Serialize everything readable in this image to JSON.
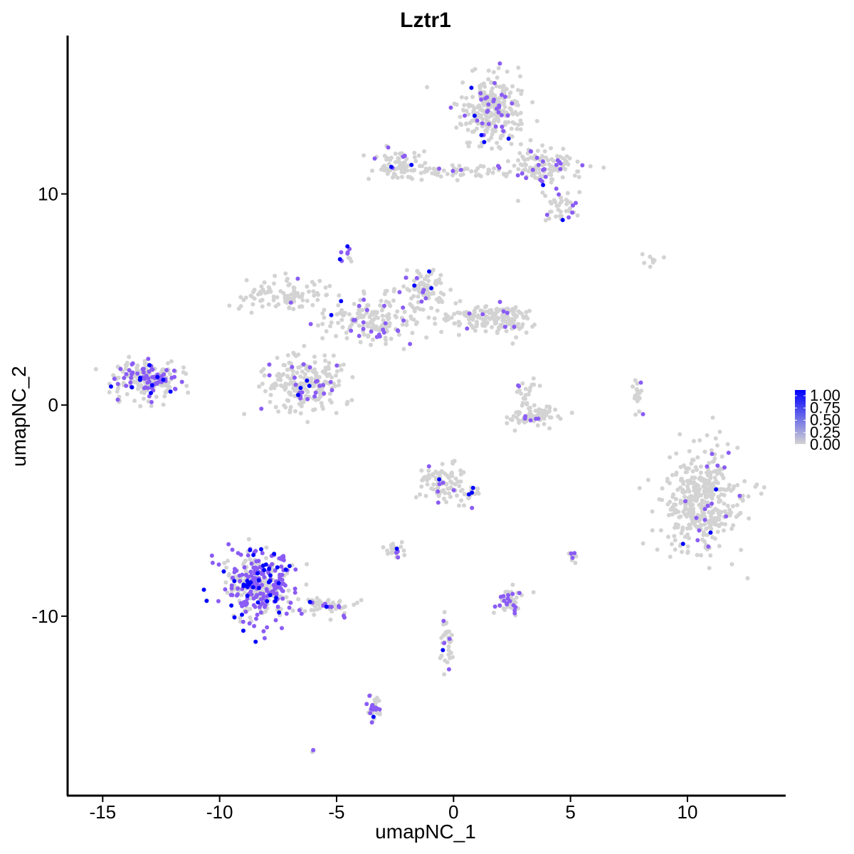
{
  "chart_data": {
    "type": "scatter",
    "title": "Lztr1",
    "xlabel": "umapNC_1",
    "ylabel": "umapNC_2",
    "xlim": [
      -16.5,
      14.2
    ],
    "ylim": [
      -18.5,
      17.5
    ],
    "x_ticks": [
      -15,
      -10,
      -5,
      0,
      5,
      10
    ],
    "x_tick_labels": [
      "-15",
      "-10",
      "-5",
      "0",
      "5",
      "10"
    ],
    "y_ticks": [
      -10,
      0,
      10
    ],
    "y_tick_labels": [
      "-10",
      "0",
      "10"
    ],
    "grid": false,
    "legend": {
      "position": "right",
      "labels": [
        "1.00",
        "0.75",
        "0.50",
        "0.25",
        "0.00"
      ],
      "range": [
        0,
        1
      ],
      "low_color": "#d3d3d3",
      "high_color": "#0000ff"
    },
    "colors": {
      "low": "#d3d3d3",
      "mid": "#8a5cf5",
      "high": "#0000ff"
    },
    "clusters": [
      {
        "x": 1.7,
        "y": 14.0,
        "sx": 0.9,
        "sy": 1.0,
        "n": 280,
        "frac_expr": 0.1
      },
      {
        "x": 3.8,
        "y": 11.3,
        "sx": 1.0,
        "sy": 0.6,
        "n": 130,
        "frac_expr": 0.15
      },
      {
        "x": 4.6,
        "y": 9.3,
        "sx": 0.5,
        "sy": 0.5,
        "n": 40,
        "frac_expr": 0.2
      },
      {
        "x": 0.2,
        "y": 11.1,
        "sx": 1.6,
        "sy": 0.2,
        "n": 60,
        "frac_expr": 0.08
      },
      {
        "x": -2.4,
        "y": 11.4,
        "sx": 0.8,
        "sy": 0.5,
        "n": 70,
        "frac_expr": 0.05
      },
      {
        "x": -13.1,
        "y": 1.2,
        "sx": 1.0,
        "sy": 0.6,
        "n": 230,
        "frac_expr": 0.3
      },
      {
        "x": -6.3,
        "y": 1.0,
        "sx": 1.1,
        "sy": 0.9,
        "n": 230,
        "frac_expr": 0.14
      },
      {
        "x": -3.5,
        "y": 4.0,
        "sx": 1.3,
        "sy": 0.7,
        "n": 170,
        "frac_expr": 0.15
      },
      {
        "x": -7.2,
        "y": 5.2,
        "sx": 1.2,
        "sy": 0.5,
        "n": 100,
        "frac_expr": 0.08
      },
      {
        "x": -1.2,
        "y": 5.5,
        "sx": 0.6,
        "sy": 0.6,
        "n": 90,
        "frac_expr": 0.1
      },
      {
        "x": 1.3,
        "y": 4.1,
        "sx": 1.2,
        "sy": 0.4,
        "n": 130,
        "frac_expr": 0.08
      },
      {
        "x": 2.5,
        "y": 4.0,
        "sx": 0.5,
        "sy": 0.5,
        "n": 50,
        "frac_expr": 0.08
      },
      {
        "x": -4.6,
        "y": 7.2,
        "sx": 0.2,
        "sy": 0.3,
        "n": 10,
        "frac_expr": 0.6
      },
      {
        "x": 3.4,
        "y": -0.5,
        "sx": 0.8,
        "sy": 0.3,
        "n": 80,
        "frac_expr": 0.05
      },
      {
        "x": 3.2,
        "y": 0.5,
        "sx": 0.3,
        "sy": 0.5,
        "n": 20,
        "frac_expr": 0.1
      },
      {
        "x": 7.9,
        "y": 0.3,
        "sx": 0.15,
        "sy": 0.6,
        "n": 20,
        "frac_expr": 0.05
      },
      {
        "x": 10.6,
        "y": -4.5,
        "sx": 1.1,
        "sy": 1.6,
        "n": 420,
        "frac_expr": 0.05
      },
      {
        "x": -0.4,
        "y": -3.7,
        "sx": 0.6,
        "sy": 0.6,
        "n": 90,
        "frac_expr": 0.12
      },
      {
        "x": 0.8,
        "y": -4.5,
        "sx": 0.3,
        "sy": 0.5,
        "n": 15,
        "frac_expr": 0.2
      },
      {
        "x": -8.3,
        "y": -8.5,
        "sx": 0.9,
        "sy": 1.1,
        "n": 360,
        "frac_expr": 0.55
      },
      {
        "x": -5.6,
        "y": -9.6,
        "sx": 0.9,
        "sy": 0.3,
        "n": 60,
        "frac_expr": 0.25
      },
      {
        "x": -2.5,
        "y": -6.9,
        "sx": 0.3,
        "sy": 0.25,
        "n": 25,
        "frac_expr": 0.25
      },
      {
        "x": 2.4,
        "y": -9.3,
        "sx": 0.4,
        "sy": 0.4,
        "n": 50,
        "frac_expr": 0.35
      },
      {
        "x": -0.3,
        "y": -11.3,
        "sx": 0.2,
        "sy": 0.9,
        "n": 35,
        "frac_expr": 0.08
      },
      {
        "x": -3.4,
        "y": -14.5,
        "sx": 0.2,
        "sy": 0.5,
        "n": 30,
        "frac_expr": 0.5
      },
      {
        "x": 5.1,
        "y": -7.2,
        "sx": 0.1,
        "sy": 0.2,
        "n": 8,
        "frac_expr": 0.3
      },
      {
        "x": 8.5,
        "y": 6.8,
        "sx": 0.5,
        "sy": 0.2,
        "n": 8,
        "frac_expr": 0.0
      },
      {
        "x": -6.0,
        "y": -16.4,
        "sx": 0.05,
        "sy": 0.05,
        "n": 3,
        "frac_expr": 0.3
      }
    ]
  }
}
